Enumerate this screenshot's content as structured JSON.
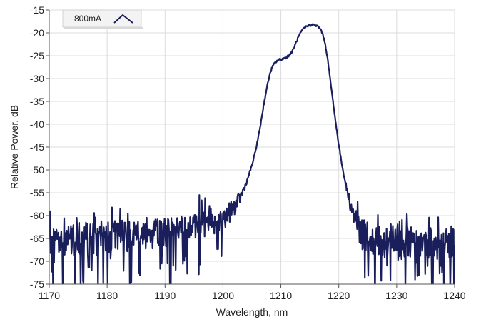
{
  "chart_data": {
    "type": "line",
    "title": "",
    "xlabel": "Wavelength, nm",
    "ylabel": "Relative Power, dB",
    "xlim": [
      1170,
      1240
    ],
    "ylim": [
      -75,
      -15
    ],
    "x_ticks": [
      1170,
      1180,
      1190,
      1200,
      1210,
      1220,
      1230,
      1240
    ],
    "y_ticks": [
      -15,
      -20,
      -25,
      -30,
      -35,
      -40,
      -45,
      -50,
      -55,
      -60,
      -65,
      -70,
      -75
    ],
    "grid": true,
    "legend_position": "top-left",
    "series": [
      {
        "name": "800mA",
        "color": "#1a1f5c",
        "points": [
          [
            1170.0,
            -66.0
          ],
          [
            1171.0,
            -65.8
          ],
          [
            1172.0,
            -65.6
          ],
          [
            1173.0,
            -65.5
          ],
          [
            1174.0,
            -65.4
          ],
          [
            1175.0,
            -65.3
          ],
          [
            1176.0,
            -65.2
          ],
          [
            1177.0,
            -65.1
          ],
          [
            1178.0,
            -65.0
          ],
          [
            1179.0,
            -64.9
          ],
          [
            1180.0,
            -64.8
          ],
          [
            1181.0,
            -64.7
          ],
          [
            1182.0,
            -64.6
          ],
          [
            1183.0,
            -64.5
          ],
          [
            1184.0,
            -64.4
          ],
          [
            1185.0,
            -64.3
          ],
          [
            1186.0,
            -64.2
          ],
          [
            1187.0,
            -64.1
          ],
          [
            1188.0,
            -64.0
          ],
          [
            1189.0,
            -63.8
          ],
          [
            1190.0,
            -63.6
          ],
          [
            1191.0,
            -63.4
          ],
          [
            1192.0,
            -63.2
          ],
          [
            1193.0,
            -63.0
          ],
          [
            1194.0,
            -62.8
          ],
          [
            1195.0,
            -62.5
          ],
          [
            1196.0,
            -62.2
          ],
          [
            1197.0,
            -61.9
          ],
          [
            1198.0,
            -61.6
          ],
          [
            1199.0,
            -61.3
          ],
          [
            1200.0,
            -60.8
          ],
          [
            1201.0,
            -59.5
          ],
          [
            1202.0,
            -58.0
          ],
          [
            1203.0,
            -56.0
          ],
          [
            1204.0,
            -53.0
          ],
          [
            1205.0,
            -49.0
          ],
          [
            1205.5,
            -46.5
          ],
          [
            1206.0,
            -43.5
          ],
          [
            1206.5,
            -40.0
          ],
          [
            1207.0,
            -36.0
          ],
          [
            1207.5,
            -32.5
          ],
          [
            1208.0,
            -29.5
          ],
          [
            1208.5,
            -27.5
          ],
          [
            1209.0,
            -26.5
          ],
          [
            1209.5,
            -26.0
          ],
          [
            1210.0,
            -25.8
          ],
          [
            1210.5,
            -25.6
          ],
          [
            1211.0,
            -25.3
          ],
          [
            1211.5,
            -24.8
          ],
          [
            1212.0,
            -24.0
          ],
          [
            1212.5,
            -22.5
          ],
          [
            1213.0,
            -21.0
          ],
          [
            1213.5,
            -19.8
          ],
          [
            1214.0,
            -19.0
          ],
          [
            1214.5,
            -18.5
          ],
          [
            1215.0,
            -18.3
          ],
          [
            1215.5,
            -18.2
          ],
          [
            1216.0,
            -18.4
          ],
          [
            1216.5,
            -18.7
          ],
          [
            1217.0,
            -19.5
          ],
          [
            1217.5,
            -21.5
          ],
          [
            1218.0,
            -25.0
          ],
          [
            1218.5,
            -30.0
          ],
          [
            1219.0,
            -35.0
          ],
          [
            1219.5,
            -40.0
          ],
          [
            1220.0,
            -44.5
          ],
          [
            1220.5,
            -48.5
          ],
          [
            1221.0,
            -52.0
          ],
          [
            1221.5,
            -55.0
          ],
          [
            1222.0,
            -57.5
          ],
          [
            1222.5,
            -59.5
          ],
          [
            1223.0,
            -61.5
          ],
          [
            1223.5,
            -63.0
          ],
          [
            1224.0,
            -64.0
          ],
          [
            1225.0,
            -65.0
          ],
          [
            1226.0,
            -65.3
          ],
          [
            1227.0,
            -65.5
          ],
          [
            1228.0,
            -65.6
          ],
          [
            1229.0,
            -65.7
          ],
          [
            1230.0,
            -65.8
          ],
          [
            1231.0,
            -65.9
          ],
          [
            1232.0,
            -66.0
          ],
          [
            1233.0,
            -66.0
          ],
          [
            1234.0,
            -66.1
          ],
          [
            1235.0,
            -66.1
          ],
          [
            1236.0,
            -66.2
          ],
          [
            1237.0,
            -66.2
          ],
          [
            1238.0,
            -66.3
          ],
          [
            1239.0,
            -66.3
          ],
          [
            1240.0,
            -66.4
          ]
        ]
      }
    ]
  }
}
